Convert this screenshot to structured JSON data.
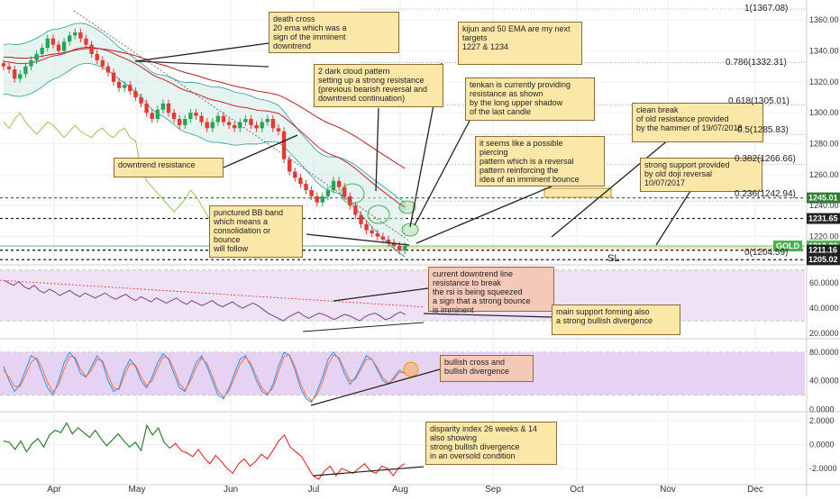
{
  "chart_data": [
    {
      "type": "candlestick",
      "panel": "price",
      "instrument_label": "GOLD",
      "y_axis_ticks": [
        "1360.00",
        "1340.00",
        "1320.00",
        "1300.00",
        "1280.00",
        "1260.00",
        "1240.00",
        "1220.00"
      ],
      "ylim": [
        1204,
        1370
      ],
      "x_axis_ticks": [
        "Apr",
        "May",
        "Jun",
        "Jul",
        "Aug",
        "Sep",
        "Oct",
        "Nov",
        "Dec"
      ],
      "price_labels": [
        {
          "text": "1245.01",
          "value": 1245.01,
          "color": "#2e7d32"
        },
        {
          "text": "1231.65",
          "value": 1231.65,
          "color": "#222222"
        },
        {
          "text": "1213.86",
          "value": 1213.86,
          "color": "#4caf50"
        },
        {
          "text": "1211.16",
          "value": 1211.16,
          "color": "#222222"
        },
        {
          "text": "1205.02",
          "value": 1205.02,
          "color": "#222222"
        }
      ],
      "symbol_tag": "GOLD",
      "fibonacci_levels": [
        {
          "text": "1(1367.08)",
          "value": 1367.08
        },
        {
          "text": "0.786(1332.31)",
          "value": 1332.31
        },
        {
          "text": "0.618(1305.01)",
          "value": 1305.01
        },
        {
          "text": "0.5(1285.83)",
          "value": 1285.83
        },
        {
          "text": "0.382(1266.66)",
          "value": 1266.66
        },
        {
          "text": "0.236(1242.94)",
          "value": 1242.94
        },
        {
          "text": "0(1204.59)",
          "value": 1204.59
        }
      ],
      "sl_label": "SL",
      "closes": [
        1330,
        1328,
        1322,
        1325,
        1330,
        1334,
        1338,
        1342,
        1348,
        1344,
        1340,
        1346,
        1350,
        1352,
        1348,
        1344,
        1338,
        1334,
        1330,
        1326,
        1320,
        1316,
        1318,
        1314,
        1310,
        1306,
        1300,
        1296,
        1302,
        1306,
        1300,
        1296,
        1292,
        1296,
        1300,
        1298,
        1294,
        1290,
        1294,
        1298,
        1294,
        1292,
        1290,
        1294,
        1296,
        1292,
        1290,
        1294,
        1296,
        1290,
        1288,
        1270,
        1262,
        1258,
        1254,
        1250,
        1246,
        1242,
        1246,
        1250,
        1256,
        1252,
        1246,
        1240,
        1234,
        1228,
        1224,
        1222,
        1220,
        1218,
        1216,
        1214,
        1211,
        1213.86
      ],
      "annotations": [
        {
          "text": "death cross\n20 ema which was a\nsign of the imminent\ndowntrend",
          "style": "yellow"
        },
        {
          "text": "2 dark cloud pattern\nsetting up a strong resistance\n(previous bearish reversal and\ndowntrend continuation)",
          "style": "yellow"
        },
        {
          "text": "kijun and 50 EMA are my next\ntargets\n1227 & 1234",
          "style": "yellow"
        },
        {
          "text": "tenkan is currently providing\nresistance as shown\nby the long upper shadow\nof the last candle",
          "style": "yellow"
        },
        {
          "text": "downtrend resistance",
          "style": "yellow"
        },
        {
          "text": "clean break\nof old resistance provided\nby the hammer of 19/07/2018",
          "style": "yellow"
        },
        {
          "text": "it seems like a possible\npiercing\npattern which is a reversal\npattern reinforcing the\nidea of an imminent bounce",
          "style": "yellow"
        },
        {
          "text": "strong support provided\nby old doji reversal\n10/07/2017",
          "style": "yellow"
        },
        {
          "text": "punctured BB band\nwhich means a\nconsolidation or\nbounce\nwill follow",
          "style": "yellow"
        }
      ]
    },
    {
      "type": "line",
      "panel": "rsi",
      "y_axis_ticks": [
        "60.0000",
        "40.0000",
        "20.0000"
      ],
      "ylim": [
        18,
        72
      ],
      "series": [
        {
          "values": [
            62,
            60,
            58,
            61,
            57,
            55,
            58,
            54,
            52,
            55,
            53,
            50,
            52,
            54,
            51,
            49,
            52,
            50,
            48,
            50,
            52,
            49,
            47,
            49,
            51,
            48,
            46,
            49,
            47,
            45,
            48,
            46,
            44,
            46,
            48,
            45,
            43,
            46,
            44,
            42,
            44,
            46,
            43,
            41,
            43,
            45,
            42,
            40,
            42,
            44,
            42,
            39,
            36,
            34,
            32,
            30,
            33,
            35,
            37,
            34,
            32,
            34,
            36,
            35,
            33,
            31,
            33,
            35,
            34,
            32,
            30,
            33,
            35,
            36,
            34,
            31,
            32,
            35,
            37,
            35
          ]
        }
      ],
      "annotations": [
        {
          "text": "current downtrend line\nresistance to break\nthe rsi is being squeezed\na sign that a strong bounce\nis imminent",
          "style": "pink"
        },
        {
          "text": "main support forming also\na strong bullish divergence",
          "style": "yellow"
        }
      ]
    },
    {
      "type": "line",
      "panel": "stochastic",
      "y_axis_ticks": [
        "80.0000",
        "40.0000",
        "0.0000"
      ],
      "ylim": [
        -2,
        95
      ],
      "series": [
        {
          "values": [
            60,
            40,
            25,
            35,
            55,
            75,
            70,
            50,
            30,
            20,
            40,
            65,
            80,
            70,
            50,
            45,
            60,
            75,
            65,
            40,
            25,
            30,
            55,
            70,
            60,
            40,
            30,
            45,
            65,
            78,
            70,
            50,
            30,
            25,
            45,
            65,
            75,
            60,
            40,
            20,
            15,
            30,
            50,
            70,
            75,
            60,
            40,
            25,
            20,
            35,
            60,
            80,
            75,
            55,
            30,
            15,
            10,
            25,
            45,
            70,
            80,
            70,
            50,
            35,
            45,
            60,
            75,
            70,
            55,
            40,
            35,
            45,
            55,
            50
          ]
        },
        {
          "values": [
            55,
            45,
            32,
            32,
            48,
            66,
            72,
            58,
            38,
            24,
            34,
            56,
            74,
            73,
            56,
            46,
            55,
            70,
            68,
            48,
            30,
            28,
            48,
            64,
            62,
            46,
            33,
            40,
            58,
            73,
            72,
            56,
            36,
            27,
            40,
            58,
            72,
            64,
            46,
            26,
            17,
            26,
            44,
            63,
            73,
            64,
            46,
            30,
            22,
            30,
            52,
            74,
            76,
            60,
            36,
            20,
            12,
            20,
            38,
            62,
            76,
            72,
            56,
            40,
            42,
            56,
            70,
            70,
            58,
            44,
            37,
            42,
            52,
            51
          ]
        }
      ],
      "annotations": [
        {
          "text": "bullish cross and\nbullish divergence",
          "style": "pink"
        }
      ]
    },
    {
      "type": "line",
      "panel": "disparity",
      "y_axis_ticks": [
        "2.0000",
        "0.0000",
        "-2.0000"
      ],
      "ylim": [
        -3.2,
        2.6
      ],
      "series": [
        {
          "values": [
            0.3,
            0.2,
            -0.4,
            0.3,
            -0.6,
            0.1,
            0.5,
            -0.2,
            0.8,
            1.2,
            1.0,
            1.8,
            0.9,
            1.4,
            1.0,
            0.6,
            1.2,
            0.5,
            -0.1,
            0.4,
            0.9,
            0.3,
            -0.2,
            0.2,
            -0.5,
            1.6,
            0.8,
            1.4,
            0.2,
            -0.3,
            0.1,
            -0.5,
            -0.7,
            -1.0,
            -0.4,
            -1.1,
            -1.6,
            -0.9,
            -1.4,
            -2.0,
            -2.4,
            -1.6,
            -1.2,
            -1.8,
            -1.4,
            -0.8,
            -1.2,
            -0.5,
            0.3,
            0.8,
            -0.2,
            -0.6,
            -1.0,
            -1.8,
            -2.6,
            -2.9,
            -2.2,
            -1.8,
            -2.6,
            -2.0,
            -2.2,
            -2.4,
            -2.0,
            -1.6,
            -2.2,
            -2.4,
            -1.8,
            -2.0,
            -2.6,
            -1.9,
            -1.6
          ]
        }
      ],
      "annotations": [
        {
          "text": "disparity index 26 weeks & 14\nalso showing\nstrong bullish divergence\nin an oversold condition",
          "style": "yellow"
        }
      ]
    }
  ]
}
